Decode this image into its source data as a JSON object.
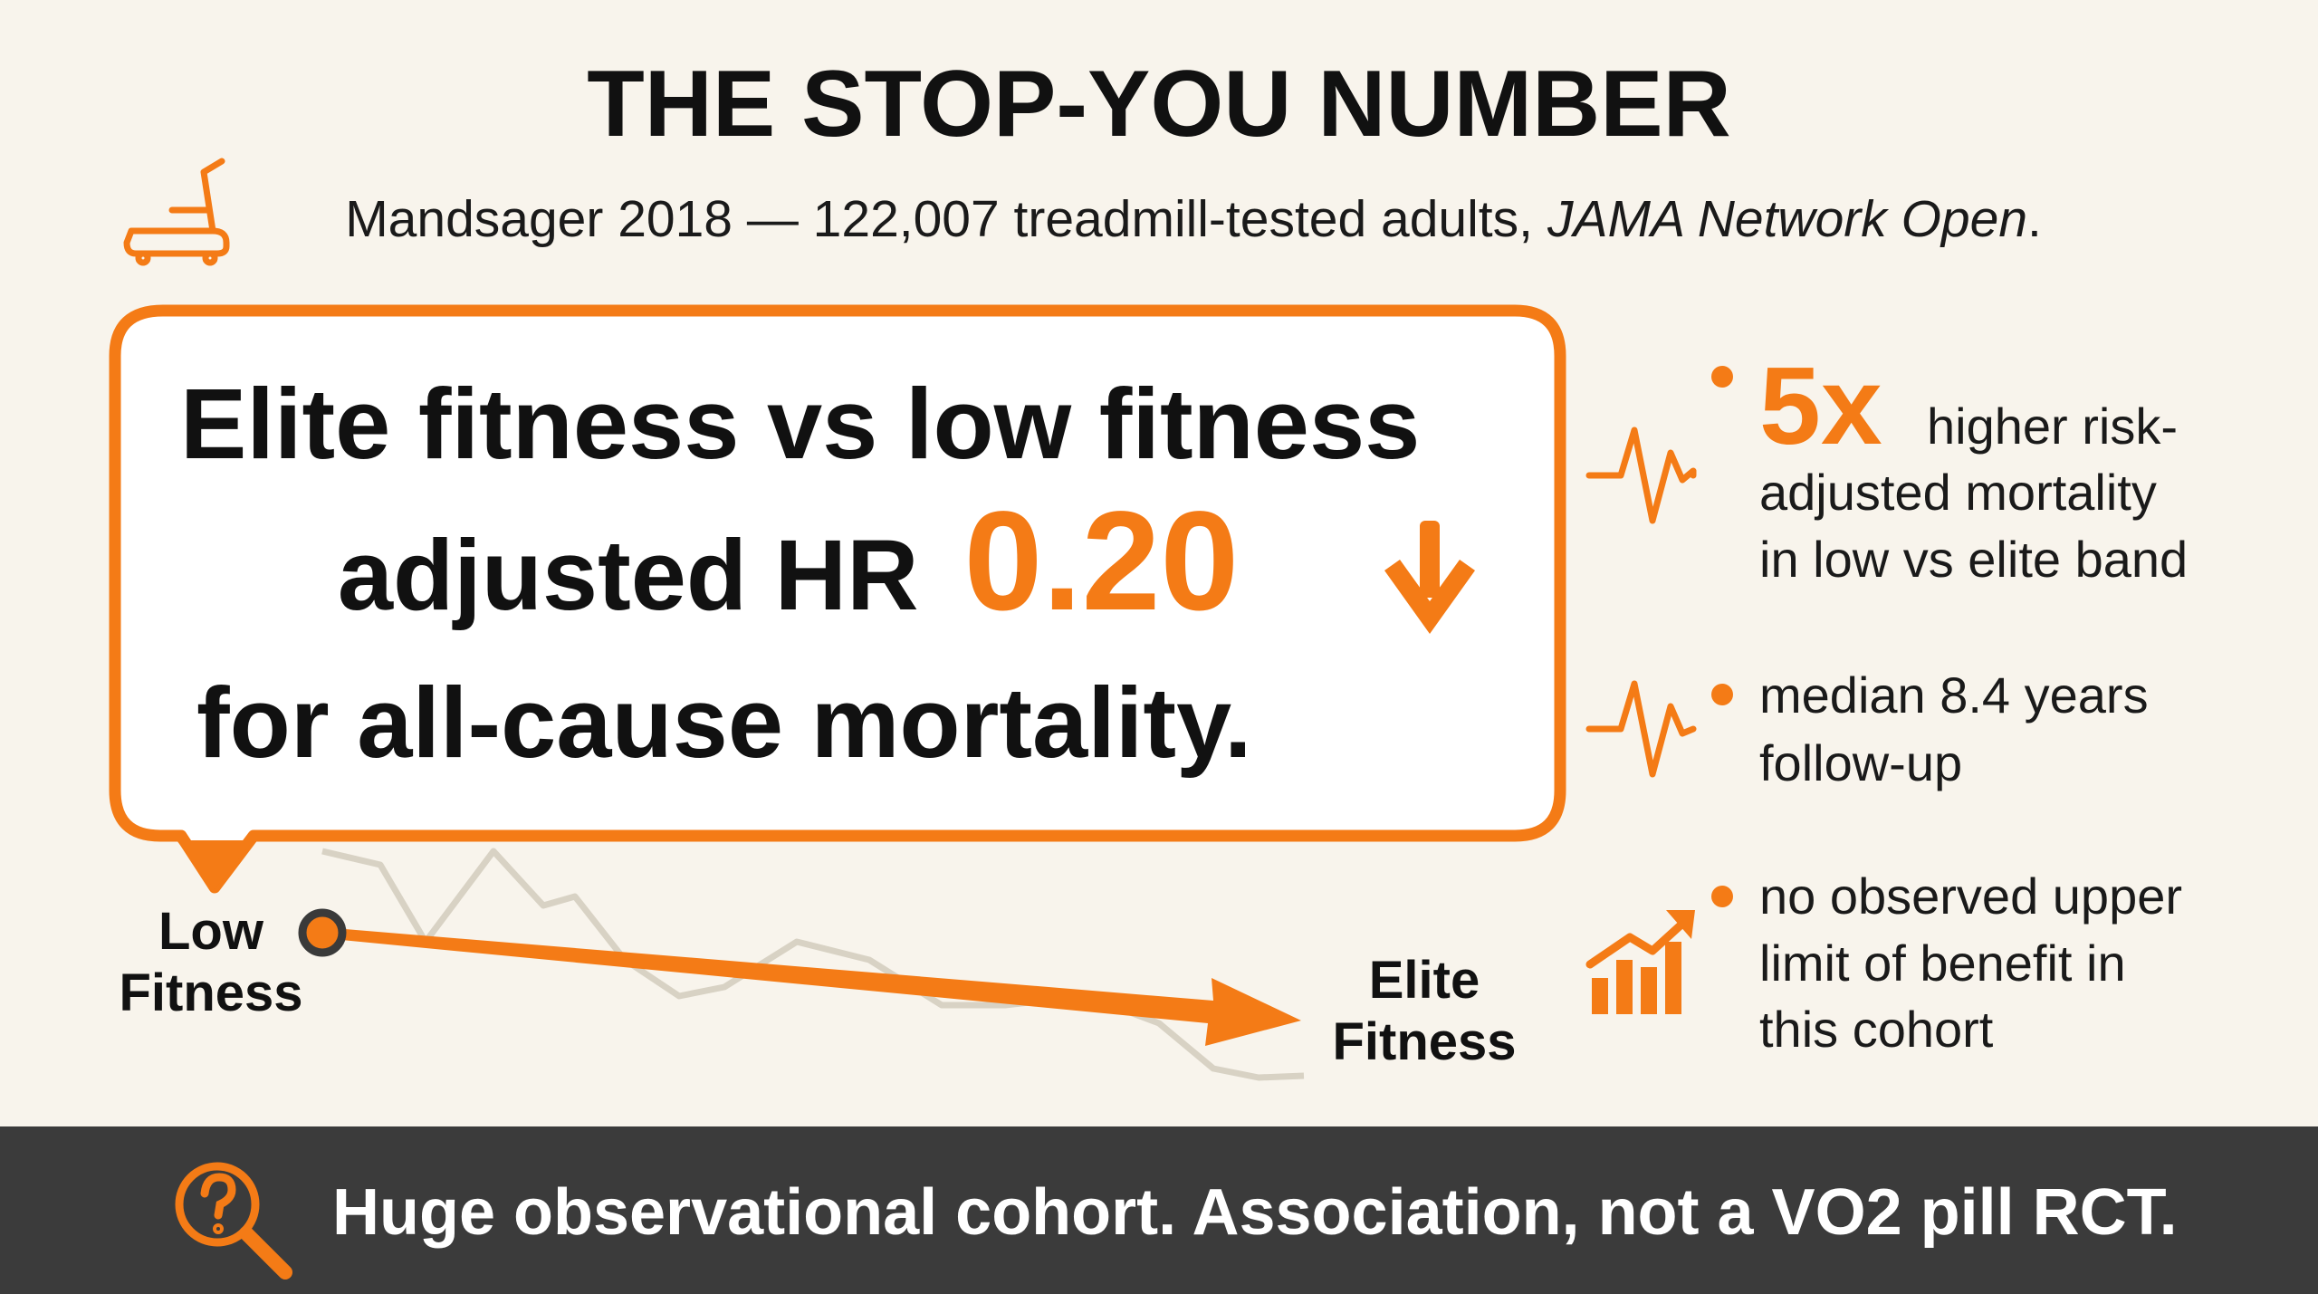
{
  "header": {
    "title": "THE STOP-YOU NUMBER",
    "subtitle": [
      "Mandsager 2018 — 122,007 treadmill-tested adults,",
      "JAMA Network Open",
      "."
    ]
  },
  "callout": {
    "line1": "Elite fitness vs low fitness",
    "line2": "adjusted HR",
    "highlight": "0.20",
    "line3": "for all-cause mortality."
  },
  "trend": {
    "start_label": [
      "Low",
      "Fitness"
    ],
    "end_label": [
      "Elite",
      "Fitness"
    ]
  },
  "bullets": [
    {
      "emphasis": "5x",
      "lines": [
        "higher risk-",
        "adjusted mortality",
        "in low vs elite band"
      ]
    },
    {
      "lines": [
        "median 8.4 years",
        "follow-up"
      ]
    },
    {
      "lines": [
        "no observed upper",
        "limit of benefit in",
        "this cohort"
      ]
    }
  ],
  "footer": {
    "text": "Huge observational cohort. Association, not a VO2 pill RCT."
  }
}
